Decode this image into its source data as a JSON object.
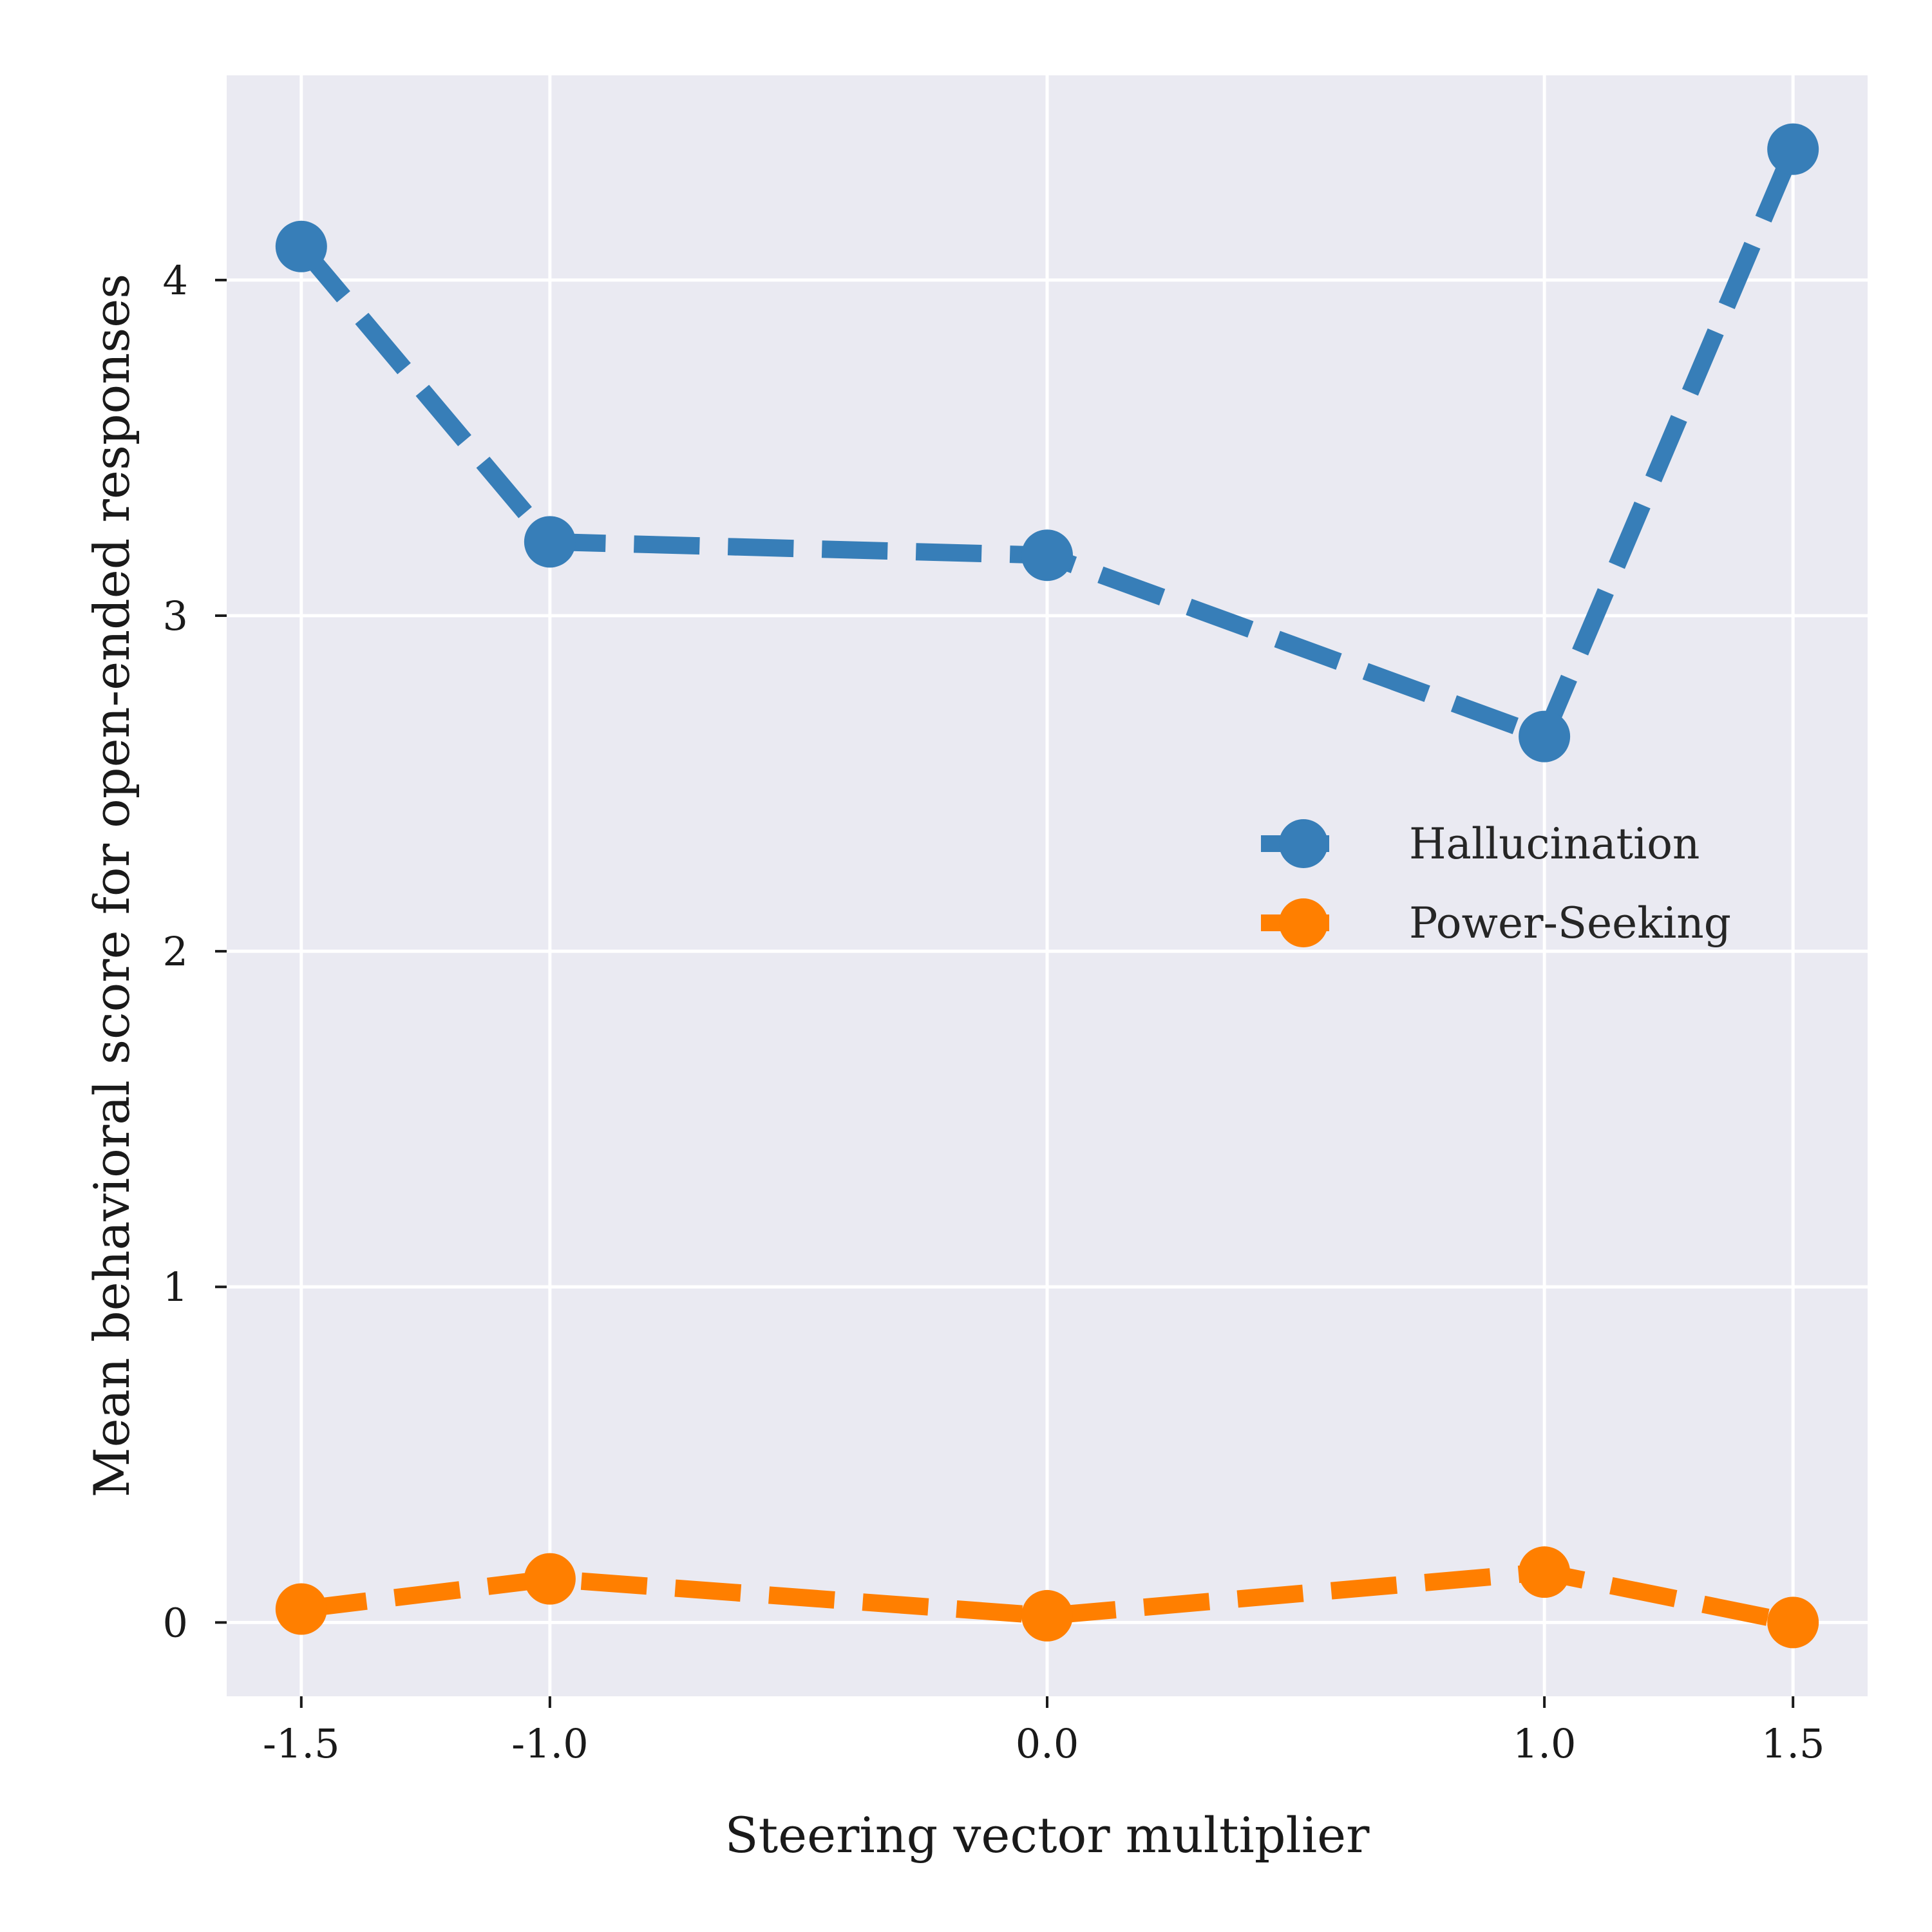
{
  "chart_data": {
    "type": "line",
    "xlabel": "Steering vector multiplier",
    "ylabel": "Mean behavioral score for open-ended responses",
    "x": [
      -1.5,
      -1.0,
      0.0,
      1.0,
      1.5
    ],
    "x_tick_labels": [
      "-1.5",
      "-1.0",
      "0.0",
      "1.0",
      "1.5"
    ],
    "y_ticks": [
      0,
      1,
      2,
      3,
      4
    ],
    "y_tick_labels": [
      "0",
      "1",
      "2",
      "3",
      "4"
    ],
    "xlim": [
      -1.65,
      1.65
    ],
    "ylim": [
      -0.22,
      4.61
    ],
    "grid": true,
    "background": "#eaeaf2",
    "legend_position": "right",
    "line_style": "dashed",
    "marker": "circle",
    "series": [
      {
        "name": "Hallucination",
        "color": "#377eb8",
        "values": [
          4.1,
          3.22,
          3.18,
          2.64,
          4.39
        ]
      },
      {
        "name": "Power-Seeking",
        "color": "#ff7f00",
        "values": [
          0.04,
          0.13,
          0.02,
          0.15,
          0.0
        ]
      }
    ]
  }
}
